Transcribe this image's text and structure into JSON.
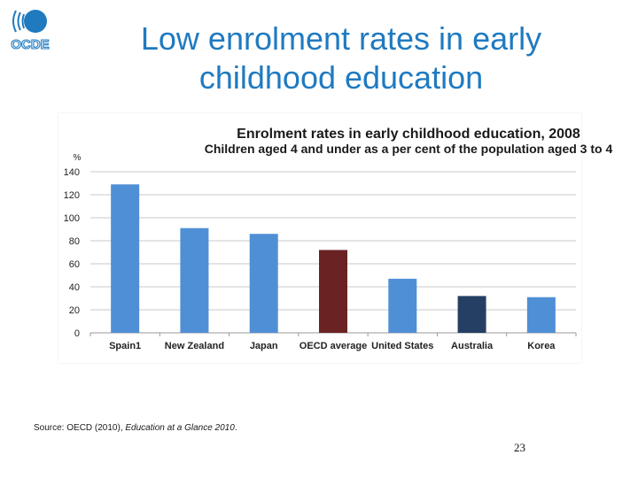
{
  "slide": {
    "title_line1": "Low enrolment rates in early",
    "title_line2": "childhood education",
    "logo_text": "OCDE",
    "page_number": "23"
  },
  "source": {
    "prefix": "Source: OECD (2010), ",
    "italic": "Education at a Glance 2010",
    "suffix": "."
  },
  "colors": {
    "title": "#1f7ac0",
    "bar_default": "#4f8fd6",
    "bar_oecd": "#6b2222",
    "bar_australia": "#253e63",
    "logo": "#1f7ac0"
  },
  "chart_data": {
    "type": "bar",
    "title": "Enrolment rates in early childhood education, 2008",
    "subtitle": "Children aged 4 and under as a per cent of the population aged 3 to 4",
    "ylabel": "%",
    "ylim": [
      0,
      140
    ],
    "yticks": [
      0,
      20,
      40,
      60,
      80,
      100,
      120,
      140
    ],
    "grid": true,
    "categories": [
      "Spain1",
      "New Zealand",
      "Japan",
      "OECD average",
      "United States",
      "Australia",
      "Korea"
    ],
    "values": [
      129,
      91,
      86,
      72,
      47,
      32,
      31
    ],
    "bar_colors": [
      "#4f8fd6",
      "#4f8fd6",
      "#4f8fd6",
      "#6b2222",
      "#4f8fd6",
      "#253e63",
      "#4f8fd6"
    ]
  }
}
